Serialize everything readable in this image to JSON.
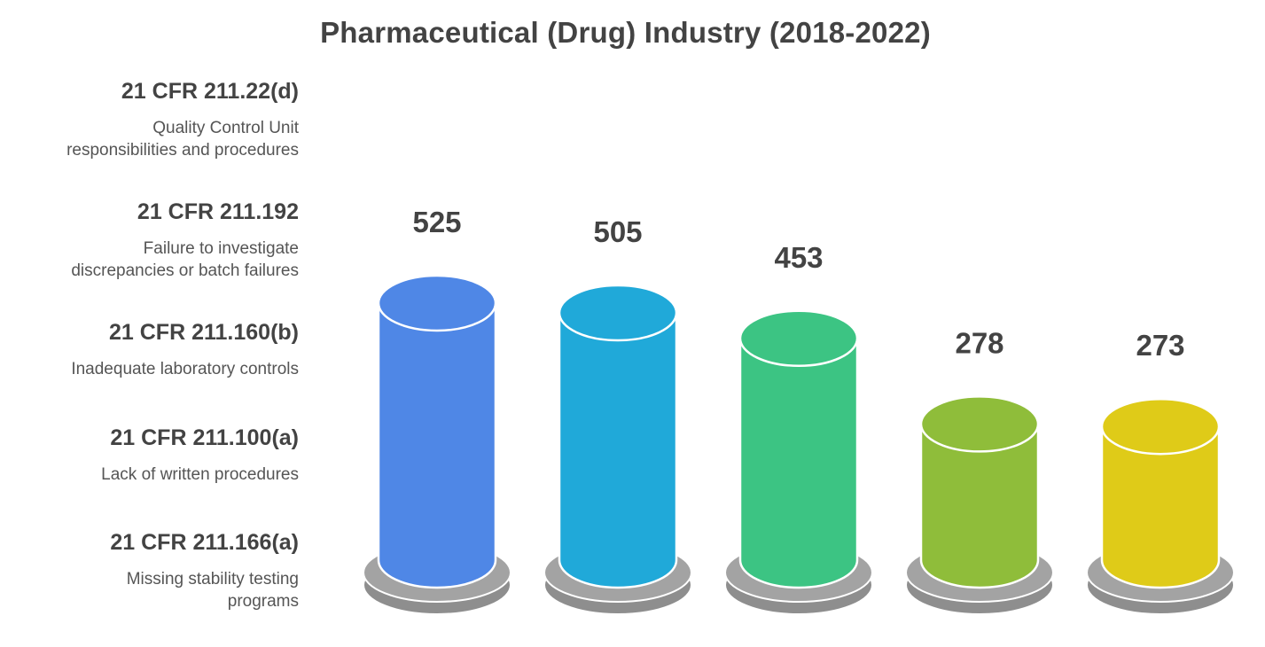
{
  "chart_data": {
    "type": "bar",
    "title": "Pharmaceutical (Drug) Industry (2018-2022)",
    "categories": [
      "21 CFR 211.22(d)",
      "21 CFR 211.192",
      "21 CFR 211.160(b)",
      "21 CFR 211.100(a)",
      "21 CFR 211.166(a)"
    ],
    "descriptions": [
      "Quality Control Unit\nresponsibilities and procedures",
      "Failure to investigate\ndiscrepancies or batch failures",
      "Inadequate laboratory controls",
      "Lack of written procedures",
      "Missing stability testing\nprograms"
    ],
    "values": [
      525,
      505,
      453,
      278,
      273
    ],
    "value_labels": [
      "525",
      "505",
      "453",
      "278",
      "273"
    ],
    "colors": [
      "#4F87E6",
      "#20A9D9",
      "#3CC483",
      "#8FBD3A",
      "#DFCB18"
    ],
    "base_color": "#9B9B9B",
    "legend_placement": "left",
    "grid": false
  }
}
